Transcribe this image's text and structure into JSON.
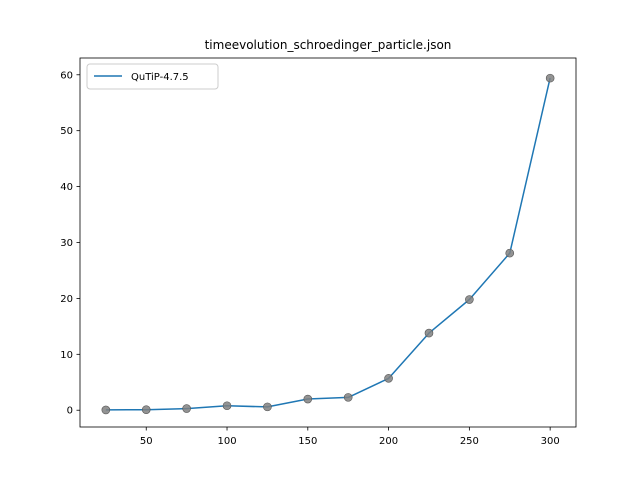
{
  "chart_data": {
    "type": "line",
    "title": "timeevolution_schroedinger_particle.json",
    "xlabel": "",
    "ylabel": "",
    "xlim": [
      9,
      316
    ],
    "ylim": [
      -3,
      63
    ],
    "xticks": [
      50,
      100,
      150,
      200,
      250,
      300
    ],
    "yticks": [
      0,
      10,
      20,
      30,
      40,
      50,
      60
    ],
    "grid": false,
    "legend_position": "top-left",
    "series": [
      {
        "name": "QuTiP-4.7.5",
        "color": "#1f77b4",
        "marker_color": "#808080",
        "x": [
          25,
          50,
          75,
          100,
          125,
          150,
          175,
          200,
          225,
          250,
          275,
          300
        ],
        "y": [
          0.05,
          0.1,
          0.3,
          0.8,
          0.6,
          2.0,
          2.3,
          5.7,
          13.8,
          19.8,
          28.1,
          59.4
        ]
      }
    ]
  }
}
